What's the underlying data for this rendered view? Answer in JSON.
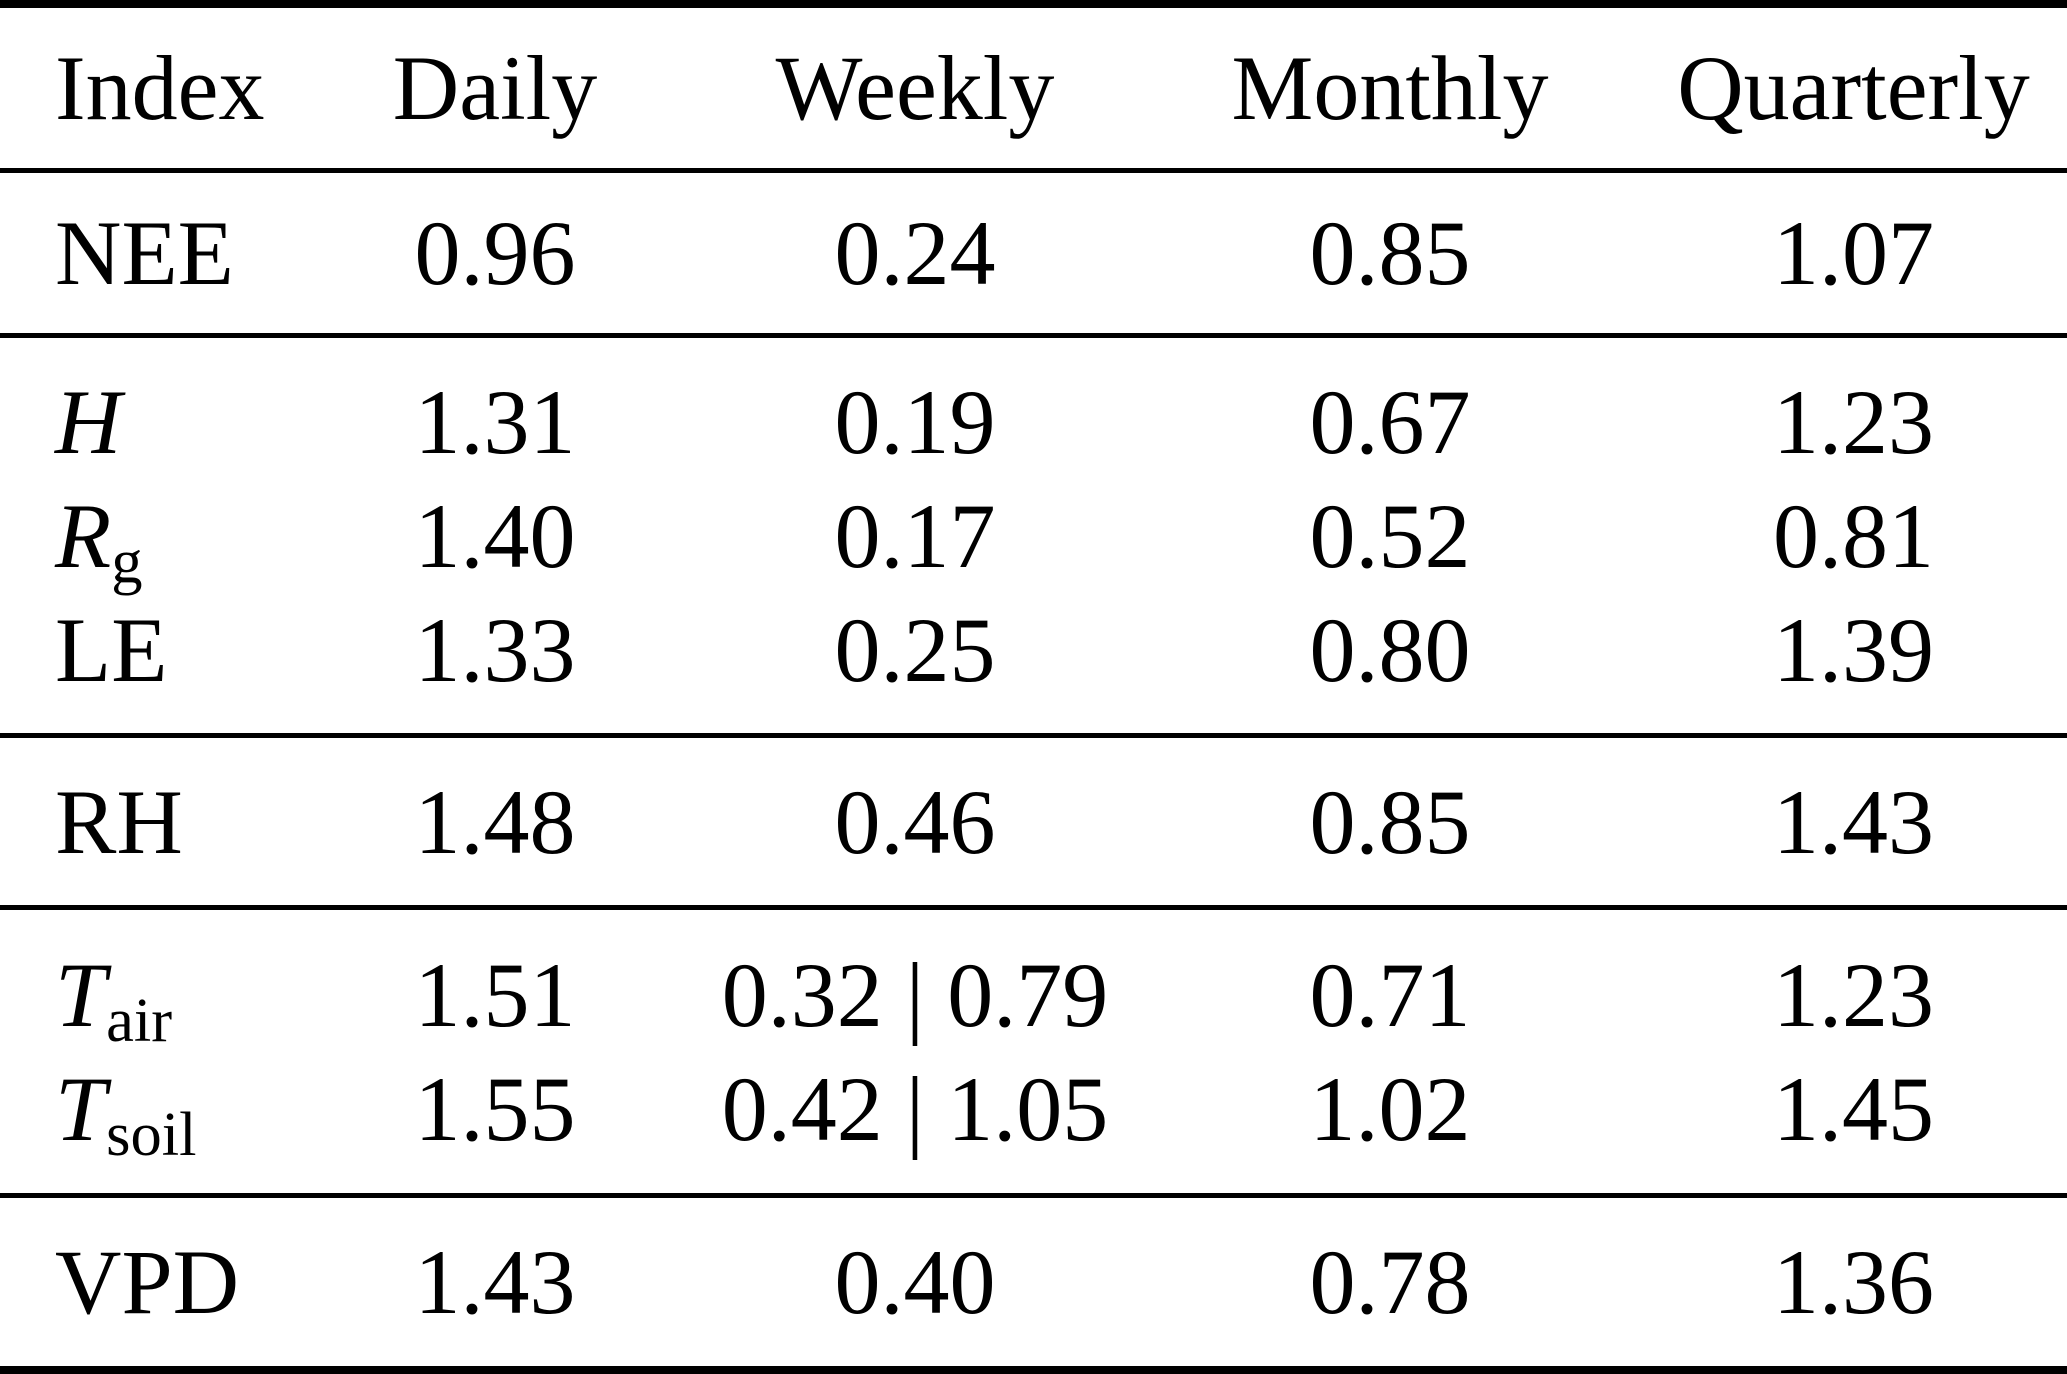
{
  "table": {
    "columns": [
      "Index",
      "Daily",
      "Weekly",
      "Monthly",
      "Quarterly"
    ],
    "sections": [
      {
        "rows": [
          {
            "label": "NEE",
            "values": [
              "0.96",
              "0.24",
              "0.85",
              "1.07"
            ]
          }
        ]
      },
      {
        "rows": [
          {
            "label": "H",
            "values": [
              "1.31",
              "0.19",
              "0.67",
              "1.23"
            ]
          },
          {
            "label": "R",
            "sub": "g",
            "values": [
              "1.40",
              "0.17",
              "0.52",
              "0.81"
            ]
          },
          {
            "label": "LE",
            "values": [
              "1.33",
              "0.25",
              "0.80",
              "1.39"
            ]
          }
        ]
      },
      {
        "rows": [
          {
            "label": "RH",
            "values": [
              "1.48",
              "0.46",
              "0.85",
              "1.43"
            ]
          }
        ]
      },
      {
        "rows": [
          {
            "label": "T",
            "sub": "air",
            "values": [
              "1.51",
              "0.32 | 0.79",
              "0.71",
              "1.23"
            ]
          },
          {
            "label": "T",
            "sub": "soil",
            "values": [
              "1.55",
              "0.42 | 1.05",
              "1.02",
              "1.45"
            ]
          }
        ]
      },
      {
        "rows": [
          {
            "label": "VPD",
            "values": [
              "1.43",
              "0.40",
              "0.78",
              "1.36"
            ]
          }
        ]
      }
    ]
  }
}
